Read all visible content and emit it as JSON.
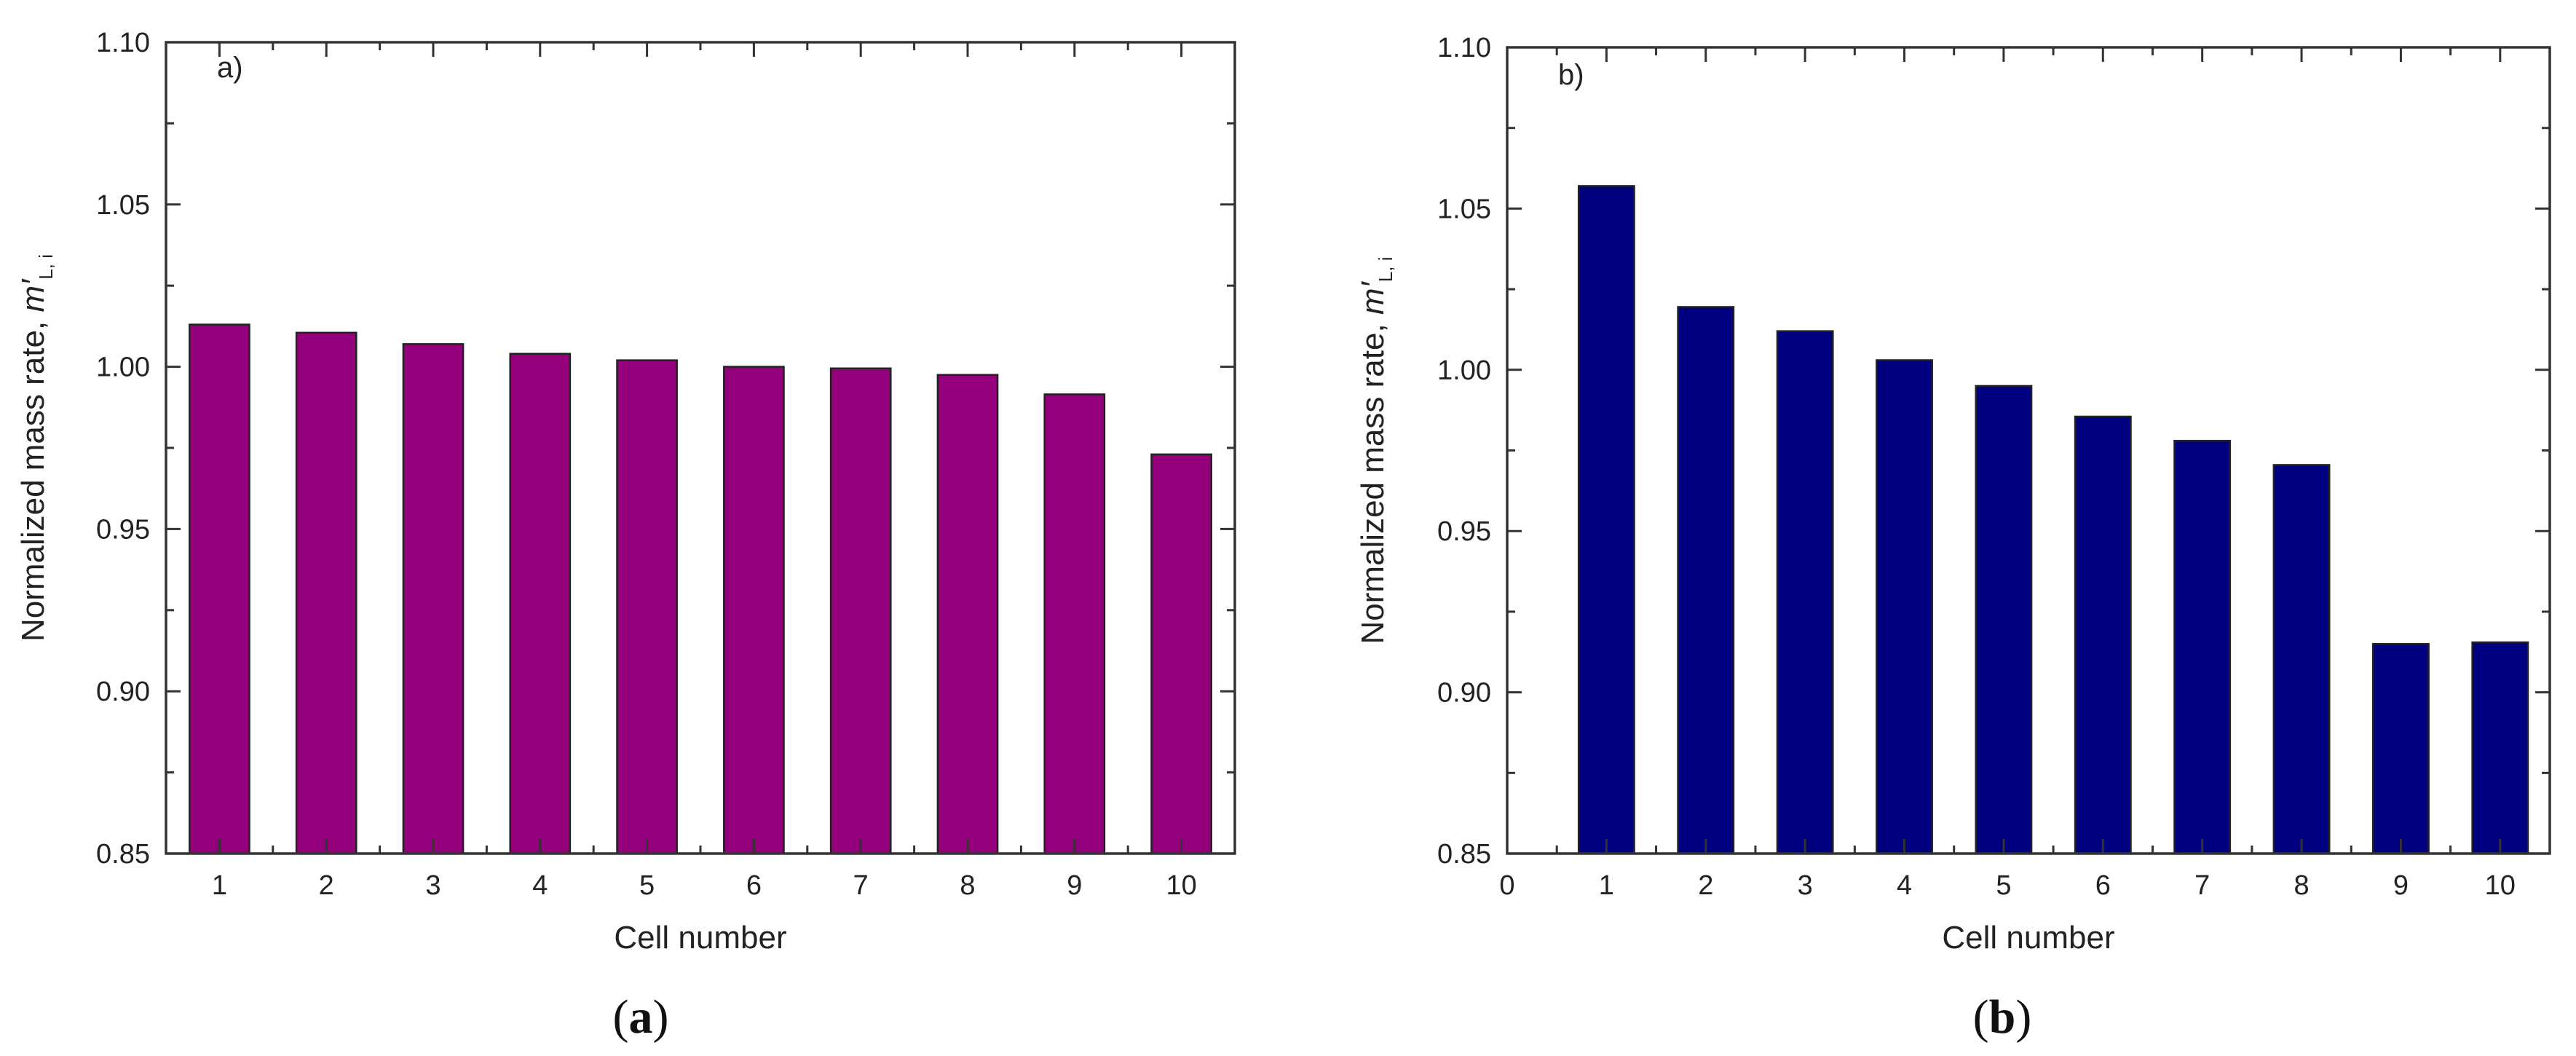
{
  "chart_data": [
    {
      "type": "bar",
      "panel_tag": "a)",
      "caption": {
        "open": "(",
        "letter": "a",
        "close": ")"
      },
      "categories": [
        "1",
        "2",
        "3",
        "4",
        "5",
        "6",
        "7",
        "8",
        "9",
        "10"
      ],
      "values": [
        1.013,
        1.0105,
        1.007,
        1.004,
        1.002,
        1.0,
        0.9995,
        0.9975,
        0.9915,
        0.973
      ],
      "color": "#94007c",
      "xlabel": "Cell number",
      "ylabel_prefix": "Normalized mass rate, ",
      "ylabel_symbol": "m′",
      "ylabel_subscript": "L, i",
      "ylim": [
        0.85,
        1.1
      ],
      "yticks": [
        "0.85",
        "0.90",
        "0.95",
        "1.00",
        "1.05",
        "1.10"
      ],
      "x_zero_label": null
    },
    {
      "type": "bar",
      "panel_tag": "b)",
      "caption": {
        "open": "(",
        "letter": "b",
        "close": ")"
      },
      "categories": [
        "1",
        "2",
        "3",
        "4",
        "5",
        "6",
        "7",
        "8",
        "9",
        "10"
      ],
      "values": [
        1.057,
        1.0195,
        1.012,
        1.003,
        0.995,
        0.9855,
        0.978,
        0.9705,
        0.915,
        0.9155
      ],
      "color": "#000080",
      "xlabel": "Cell number",
      "ylabel_prefix": "Normalized mass rate, ",
      "ylabel_symbol": "m′",
      "ylabel_subscript": "L, i",
      "ylim": [
        0.85,
        1.1
      ],
      "yticks": [
        "0.85",
        "0.90",
        "0.95",
        "1.00",
        "1.05",
        "1.10"
      ],
      "x_zero_label": "0"
    }
  ]
}
